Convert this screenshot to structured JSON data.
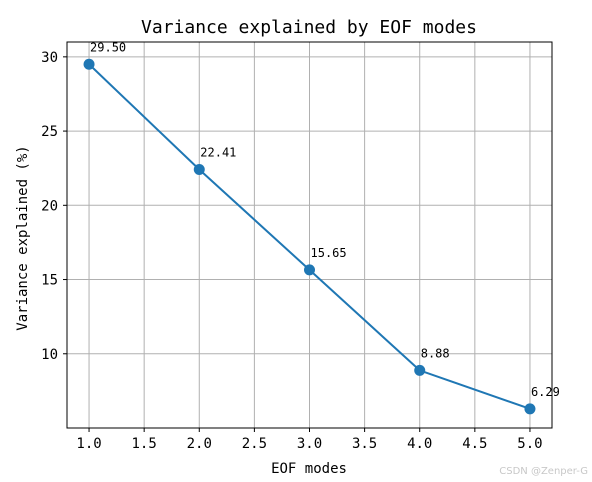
{
  "chart_data": {
    "type": "line",
    "title": "Variance explained by EOF modes",
    "xlabel": "EOF modes",
    "ylabel": "Variance explained (%)",
    "x": [
      1,
      2,
      3,
      4,
      5
    ],
    "values": [
      29.5,
      22.41,
      15.65,
      8.88,
      6.29
    ],
    "data_labels": [
      "29.50",
      "22.41",
      "15.65",
      "8.88",
      "6.29"
    ],
    "xlim": [
      0.8,
      5.2
    ],
    "ylim": [
      5.0,
      31.0
    ],
    "xticks": [
      1.0,
      1.5,
      2.0,
      2.5,
      3.0,
      3.5,
      4.0,
      4.5,
      5.0
    ],
    "xtick_labels": [
      "1.0",
      "1.5",
      "2.0",
      "2.5",
      "3.0",
      "3.5",
      "4.0",
      "4.5",
      "5.0"
    ],
    "yticks": [
      10,
      15,
      20,
      25,
      30
    ],
    "ytick_labels": [
      "10",
      "15",
      "20",
      "25",
      "30"
    ],
    "grid": true,
    "line_color": "#1f77b4",
    "grid_color": "#b0b0b0",
    "marker": "circle"
  },
  "watermark": "CSDN @Zenper-G"
}
